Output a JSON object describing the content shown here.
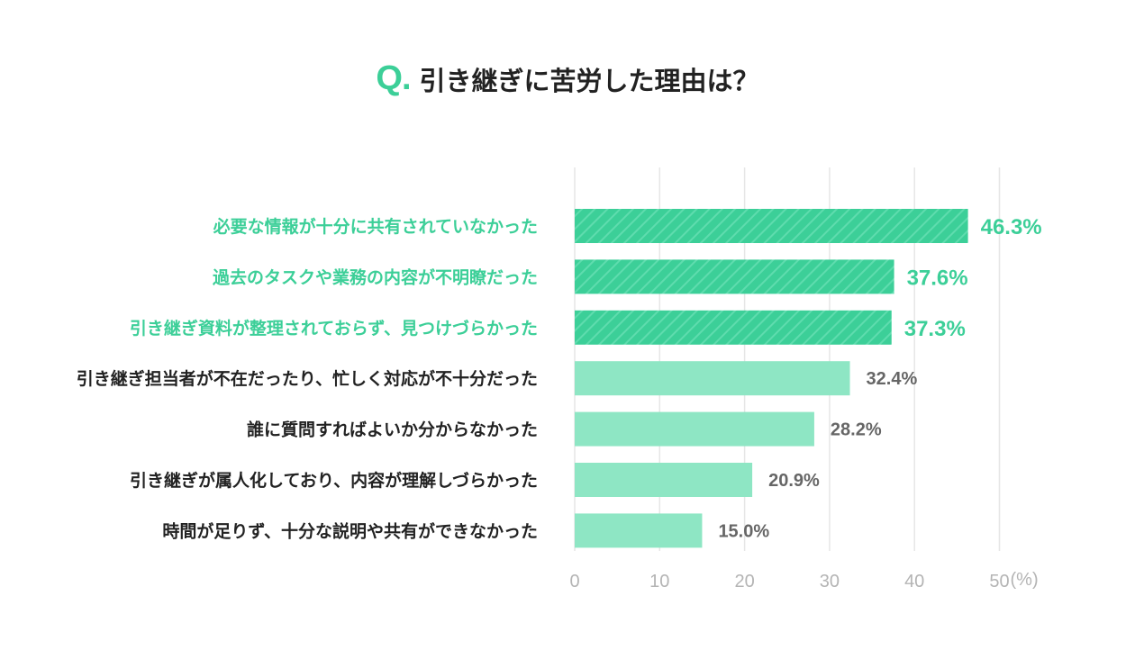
{
  "title": {
    "prefix": "Q.",
    "text": "引き継ぎに苦労した理由は？"
  },
  "colors": {
    "highlight": "#3ccf98",
    "highlight_stripe": "#5fdcae",
    "normal": "#8ee6c4",
    "value_normal": "#666666",
    "label_normal": "#222222",
    "grid": "#e6e6e6",
    "tick": "#b4b4b4"
  },
  "chart_data": {
    "type": "bar",
    "orientation": "horizontal",
    "categories": [
      "必要な情報が十分に共有されていなかった",
      "過去のタスクや業務の内容が不明瞭だった",
      "引き継ぎ資料が整理されておらず、見つけづらかった",
      "引き継ぎ担当者が不在だったり、忙しく対応が不十分だった",
      "誰に質問すればよいか分からなかった",
      "引き継ぎが属人化しており、内容が理解しづらかった",
      "時間が足りず、十分な説明や共有ができなかった"
    ],
    "values": [
      46.3,
      37.6,
      37.3,
      32.4,
      28.2,
      20.9,
      15.0
    ],
    "value_labels": [
      "46.3%",
      "37.6%",
      "37.3%",
      "32.4%",
      "28.2%",
      "20.9%",
      "15.0%"
    ],
    "highlighted": [
      true,
      true,
      true,
      false,
      false,
      false,
      false
    ],
    "xlim": [
      0,
      50
    ],
    "xticks": [
      "0",
      "10",
      "20",
      "30",
      "40",
      "50"
    ],
    "unit_label": "(%)",
    "grid": true
  }
}
